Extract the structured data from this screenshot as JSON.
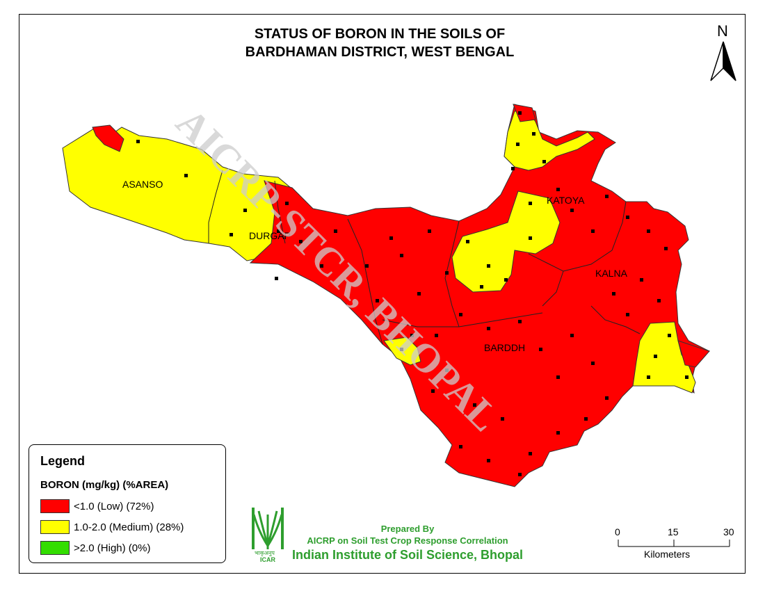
{
  "title": {
    "line1": "STATUS OF BORON IN THE SOILS OF",
    "line2": "BARDHAMAN DISTRICT, WEST BENGAL"
  },
  "north_arrow": {
    "label": "N",
    "icon": "north-arrow-icon"
  },
  "districts": [
    {
      "id": "asanso",
      "label": "ASANSO"
    },
    {
      "id": "durgap",
      "label": "DURGAP"
    },
    {
      "id": "katoya",
      "label": "KATOYA"
    },
    {
      "id": "kalna",
      "label": "KALNA"
    },
    {
      "id": "barddh",
      "label": "BARDDH"
    }
  ],
  "watermark": "AICRP-STCR, BHOPAL",
  "legend": {
    "title": "Legend",
    "subtitle": "BORON (mg/kg) (%AREA)",
    "items": [
      {
        "label": "<1.0 (Low) (72%)",
        "color": "#ff0000"
      },
      {
        "label": "1.0-2.0 (Medium) (28%)",
        "color": "#ffff00"
      },
      {
        "label": ">2.0 (High) (0%)",
        "color": "#33dd00"
      }
    ]
  },
  "credits": {
    "line1": "Prepared By",
    "line2": "AICRP on Soil Test Crop Response Correlation",
    "line3": "Indian Institute of Soil Science, Bhopal",
    "logo_text_top": "भाकृअनुप",
    "logo_text_bottom": "ICAR"
  },
  "scale_bar": {
    "ticks": [
      "0",
      "15",
      "30"
    ],
    "unit": "Kilometers"
  },
  "colors": {
    "low": "#ff0000",
    "medium": "#ffff00",
    "high": "#33dd00",
    "credits_green": "#2e9e2e"
  }
}
